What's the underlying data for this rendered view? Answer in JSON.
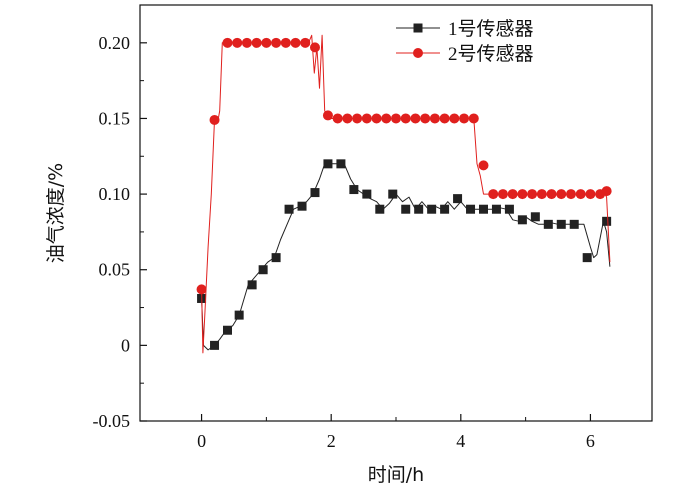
{
  "chart_data": {
    "type": "line",
    "xlabel": "时间/h",
    "ylabel": "油气浓度/%",
    "xlim": [
      -0.95,
      6.95
    ],
    "ylim": [
      -0.05,
      0.225
    ],
    "xticks": [
      0,
      2,
      4,
      6
    ],
    "xtick_labels": [
      "0",
      "2",
      "4",
      "6"
    ],
    "yticks": [
      -0.05,
      0,
      0.05,
      0.1,
      0.15,
      0.2
    ],
    "ytick_labels": [
      "-0.05",
      "0",
      "0.05",
      "0.10",
      "0.15",
      "0.20"
    ],
    "grid": false,
    "legend_position": "top-right",
    "series": [
      {
        "name": "1号传感器",
        "color": "#222222",
        "marker": "square",
        "x": [
          0.0,
          0.03,
          0.1,
          0.2,
          0.28,
          0.38,
          0.48,
          0.58,
          0.72,
          0.82,
          0.92,
          1.02,
          1.12,
          1.22,
          1.32,
          1.42,
          1.52,
          1.62,
          1.72,
          1.82,
          1.9,
          2.0,
          2.1,
          2.2,
          2.3,
          2.4,
          2.5,
          2.6,
          2.7,
          2.8,
          2.9,
          3.0,
          3.1,
          3.2,
          3.3,
          3.4,
          3.5,
          3.6,
          3.7,
          3.8,
          3.9,
          4.0,
          4.1,
          4.2,
          4.3,
          4.4,
          4.5,
          4.6,
          4.7,
          4.8,
          4.9,
          5.0,
          5.1,
          5.2,
          5.3,
          5.4,
          5.5,
          5.6,
          5.7,
          5.8,
          5.9,
          6.0,
          6.05,
          6.1,
          6.2,
          6.25,
          6.3
        ],
        "y": [
          0.031,
          0.0,
          -0.003,
          0.0,
          0.004,
          0.01,
          0.013,
          0.02,
          0.04,
          0.045,
          0.05,
          0.055,
          0.058,
          0.07,
          0.08,
          0.09,
          0.092,
          0.095,
          0.1,
          0.11,
          0.12,
          0.12,
          0.12,
          0.12,
          0.11,
          0.103,
          0.1,
          0.097,
          0.095,
          0.09,
          0.094,
          0.1,
          0.095,
          0.098,
          0.09,
          0.095,
          0.09,
          0.092,
          0.09,
          0.095,
          0.09,
          0.095,
          0.09,
          0.09,
          0.09,
          0.09,
          0.09,
          0.091,
          0.09,
          0.083,
          0.082,
          0.085,
          0.082,
          0.08,
          0.08,
          0.081,
          0.08,
          0.08,
          0.08,
          0.08,
          0.08,
          0.065,
          0.058,
          0.06,
          0.082,
          0.075,
          0.052
        ],
        "marker_x": [
          0.0,
          0.2,
          0.4,
          0.58,
          0.78,
          0.95,
          1.15,
          1.35,
          1.55,
          1.75,
          1.95,
          2.15,
          2.35,
          2.55,
          2.75,
          2.95,
          3.15,
          3.35,
          3.55,
          3.75,
          3.95,
          4.15,
          4.35,
          4.55,
          4.75,
          4.95,
          5.15,
          5.35,
          5.55,
          5.75,
          5.95,
          6.25
        ],
        "marker_y": [
          0.031,
          0.0,
          0.01,
          0.02,
          0.04,
          0.05,
          0.058,
          0.09,
          0.092,
          0.101,
          0.12,
          0.12,
          0.103,
          0.1,
          0.09,
          0.1,
          0.09,
          0.09,
          0.09,
          0.09,
          0.097,
          0.09,
          0.09,
          0.09,
          0.09,
          0.083,
          0.085,
          0.08,
          0.08,
          0.08,
          0.058,
          0.082
        ]
      },
      {
        "name": "2号传感器",
        "color": "#e0201e",
        "marker": "circle",
        "x": [
          0.0,
          0.02,
          0.05,
          0.1,
          0.15,
          0.2,
          0.25,
          0.28,
          0.32,
          0.38,
          0.5,
          0.7,
          0.9,
          1.1,
          1.3,
          1.5,
          1.65,
          1.7,
          1.74,
          1.78,
          1.82,
          1.86,
          1.9,
          2.0,
          2.2,
          2.6,
          3.0,
          3.4,
          3.8,
          4.1,
          4.2,
          4.25,
          4.3,
          4.35,
          4.4,
          4.6,
          5.0,
          5.4,
          5.8,
          6.1,
          6.2,
          6.25,
          6.3
        ],
        "y": [
          0.037,
          -0.005,
          0.02,
          0.065,
          0.1,
          0.149,
          0.148,
          0.155,
          0.2,
          0.2,
          0.2,
          0.2,
          0.2,
          0.2,
          0.2,
          0.2,
          0.2,
          0.205,
          0.18,
          0.197,
          0.17,
          0.205,
          0.155,
          0.15,
          0.15,
          0.15,
          0.15,
          0.15,
          0.15,
          0.15,
          0.15,
          0.12,
          0.112,
          0.1,
          0.1,
          0.1,
          0.1,
          0.1,
          0.1,
          0.1,
          0.102,
          0.098,
          0.055
        ],
        "marker_x": [
          0.0,
          0.2,
          0.4,
          0.55,
          0.7,
          0.85,
          1.0,
          1.15,
          1.3,
          1.45,
          1.6,
          1.75,
          1.95,
          2.1,
          2.25,
          2.4,
          2.55,
          2.7,
          2.85,
          3.0,
          3.15,
          3.3,
          3.45,
          3.6,
          3.75,
          3.9,
          4.05,
          4.2,
          4.35,
          4.5,
          4.65,
          4.8,
          4.95,
          5.1,
          5.25,
          5.4,
          5.55,
          5.7,
          5.85,
          6.0,
          6.15,
          6.25
        ],
        "marker_y": [
          0.037,
          0.149,
          0.2,
          0.2,
          0.2,
          0.2,
          0.2,
          0.2,
          0.2,
          0.2,
          0.2,
          0.197,
          0.152,
          0.15,
          0.15,
          0.15,
          0.15,
          0.15,
          0.15,
          0.15,
          0.15,
          0.15,
          0.15,
          0.15,
          0.15,
          0.15,
          0.15,
          0.15,
          0.119,
          0.1,
          0.1,
          0.1,
          0.1,
          0.1,
          0.1,
          0.1,
          0.1,
          0.1,
          0.1,
          0.1,
          0.1,
          0.102
        ]
      }
    ]
  }
}
